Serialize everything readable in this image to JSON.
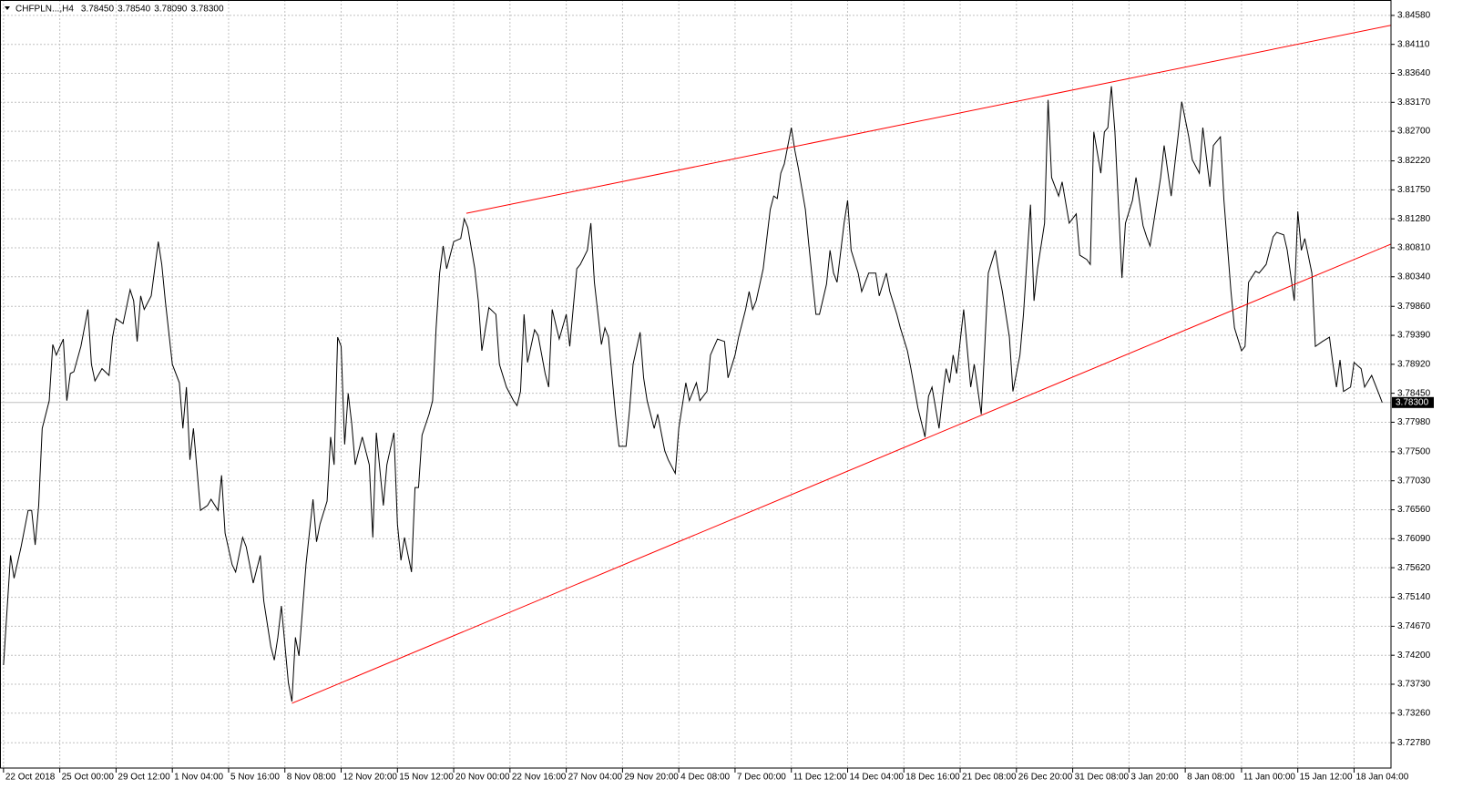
{
  "chart_data": {
    "type": "line",
    "title": "CHFPLN...,H4",
    "ohlc": [
      "3.78450",
      "3.78540",
      "3.78090",
      "3.78300"
    ],
    "x": [
      0,
      2,
      3,
      5,
      7,
      8,
      9,
      10,
      11,
      13,
      14,
      15,
      17,
      18,
      19,
      20,
      22,
      24,
      25,
      26,
      28,
      30,
      31,
      32,
      34,
      36,
      37,
      38,
      39,
      40,
      42,
      44,
      45,
      46,
      48,
      50,
      51,
      52,
      53,
      54,
      56,
      58,
      59,
      61,
      62,
      63,
      65,
      66,
      68,
      69,
      71,
      73,
      74,
      76,
      77,
      78,
      79,
      81,
      82,
      83,
      84,
      86,
      88,
      89,
      90,
      92,
      93,
      94,
      95,
      96,
      97,
      98,
      99,
      100,
      102,
      104,
      105,
      106,
      108,
      109,
      111,
      112,
      113,
      114,
      116,
      117,
      118,
      119,
      121,
      122,
      123,
      124,
      125,
      126,
      128,
      130,
      131,
      132,
      134,
      135,
      136,
      138,
      140,
      141,
      143,
      145,
      146,
      147,
      148,
      149,
      151,
      152,
      154,
      155,
      156,
      158,
      160,
      161,
      163,
      164,
      166,
      167,
      168,
      170,
      171,
      172,
      174,
      175,
      177,
      178,
      179,
      181,
      182,
      183,
      185,
      186,
      188,
      189,
      191,
      192,
      194,
      195,
      197,
      198,
      200,
      201,
      203,
      205,
      206,
      208,
      209,
      211,
      212,
      213,
      214,
      216,
      218,
      219,
      220,
      221,
      222,
      224,
      225,
      226,
      228,
      229,
      231,
      232,
      234,
      235,
      236,
      237,
      239,
      240,
      241,
      243,
      244,
      246,
      248,
      249,
      251,
      252,
      254,
      255,
      257,
      258,
      260,
      262,
      263,
      264,
      266,
      267,
      268,
      269,
      270,
      271,
      273,
      275,
      276,
      278,
      279,
      280,
      282,
      283,
      284,
      286,
      287,
      289,
      290,
      292,
      293,
      294,
      296,
      297,
      298,
      300,
      301,
      303,
      305,
      306,
      308,
      309,
      310,
      312,
      313,
      314,
      315,
      316,
      318,
      319,
      321,
      322,
      324,
      325,
      326,
      328,
      329,
      330,
      332,
      334,
      335,
      337,
      338,
      340,
      341,
      343,
      344,
      346,
      347,
      349,
      350,
      352,
      353,
      354,
      356,
      357,
      359,
      361,
      362,
      364,
      365,
      367,
      368,
      369,
      370,
      372,
      373,
      375,
      377,
      378,
      379,
      380,
      381,
      383,
      384,
      386,
      387,
      389,
      391,
      392
    ],
    "series": [
      {
        "color": "#000000",
        "values": [
          3.7404,
          3.7582,
          3.7545,
          3.7596,
          3.7655,
          3.7655,
          3.7599,
          3.7663,
          3.7788,
          3.7833,
          3.7924,
          3.7907,
          3.7933,
          3.7833,
          3.7877,
          3.788,
          3.7921,
          3.7981,
          3.7892,
          3.7865,
          3.7885,
          3.7874,
          3.7936,
          3.7966,
          3.7958,
          3.8013,
          3.7995,
          3.7929,
          3.8003,
          3.7981,
          3.8003,
          3.8091,
          3.8054,
          3.7995,
          3.7892,
          3.7862,
          3.7788,
          3.7855,
          3.7737,
          3.7788,
          3.7655,
          3.7663,
          3.7673,
          3.7655,
          3.7712,
          3.7618,
          3.7567,
          3.7555,
          3.7611,
          3.7596,
          3.7537,
          3.7582,
          3.7508,
          3.7434,
          3.7412,
          3.7449,
          3.75,
          3.7375,
          3.7345,
          3.7449,
          3.7419,
          3.7567,
          3.7673,
          3.7604,
          3.7633,
          3.767,
          3.7774,
          3.7729,
          3.7936,
          3.7921,
          3.7762,
          3.7845,
          3.7796,
          3.7729,
          3.7774,
          3.7729,
          3.7611,
          3.7781,
          3.7663,
          3.7729,
          3.7781,
          3.7633,
          3.7574,
          3.7611,
          3.7555,
          3.7692,
          3.7692,
          3.7777,
          3.7811,
          3.7833,
          3.7951,
          3.804,
          3.8084,
          3.8047,
          3.8091,
          3.8096,
          3.8128,
          3.8114,
          3.8047,
          3.7995,
          3.7914,
          3.7984,
          3.7973,
          3.7892,
          3.7855,
          3.7833,
          3.7825,
          3.7848,
          3.7973,
          3.7895,
          3.7948,
          3.7939,
          3.7877,
          3.7855,
          3.7981,
          3.7933,
          3.7973,
          3.7921,
          3.8047,
          3.8054,
          3.8077,
          3.8121,
          3.8025,
          3.7924,
          3.7951,
          3.7936,
          3.7811,
          3.7759,
          3.7759,
          3.7818,
          3.7892,
          3.7944,
          3.787,
          3.7833,
          3.7788,
          3.7811,
          3.7752,
          3.7737,
          3.7715,
          3.7788,
          3.7862,
          3.7833,
          3.7862,
          3.7833,
          3.7848,
          3.7907,
          3.7933,
          3.7929,
          3.787,
          3.7907,
          3.7936,
          3.7981,
          3.801,
          3.7981,
          3.7995,
          3.8047,
          3.8143,
          3.8165,
          3.8161,
          3.8202,
          3.8217,
          3.8276,
          3.8239,
          3.821,
          3.8143,
          3.8084,
          3.7973,
          3.7973,
          3.8022,
          3.8077,
          3.804,
          3.8025,
          3.8121,
          3.8158,
          3.8077,
          3.804,
          3.801,
          3.804,
          3.804,
          3.8003,
          3.804,
          3.801,
          3.7973,
          3.7951,
          3.7914,
          3.7885,
          3.7821,
          3.7774,
          3.784,
          3.7855,
          3.7788,
          3.784,
          3.7885,
          3.7862,
          3.7907,
          3.7877,
          3.7981,
          3.7855,
          3.7892,
          3.7811,
          3.7921,
          3.804,
          3.8077,
          3.804,
          3.801,
          3.7936,
          3.7848,
          3.7907,
          3.7973,
          3.8151,
          3.7995,
          3.8047,
          3.8121,
          3.8321,
          3.8195,
          3.8165,
          3.8188,
          3.8121,
          3.8136,
          3.8069,
          3.8062,
          3.8054,
          3.8269,
          3.8202,
          3.8269,
          3.8276,
          3.8343,
          3.8269,
          3.8032,
          3.8121,
          3.8158,
          3.8195,
          3.8117,
          3.8099,
          3.8084,
          3.8158,
          3.8195,
          3.8247,
          3.8165,
          3.8264,
          3.8318,
          3.8261,
          3.8224,
          3.8202,
          3.8276,
          3.818,
          3.8247,
          3.8261,
          3.8158,
          3.801,
          3.7951,
          3.7914,
          3.7921,
          3.8025,
          3.8043,
          3.804,
          3.8054,
          3.8099,
          3.8106,
          3.8102,
          3.8077,
          3.7995,
          3.814,
          3.8077,
          3.8096,
          3.804,
          3.7921,
          3.7929,
          3.7936,
          3.7892,
          3.7855,
          3.7899,
          3.7848,
          3.7855,
          3.7895,
          3.7885,
          3.7855,
          3.7874,
          3.7845,
          3.783
        ]
      }
    ],
    "trendlines": [
      {
        "color": "#ff0000",
        "x": [
          131.6,
          394.5
        ],
        "values": [
          3.8137,
          3.8442
        ]
      },
      {
        "color": "#ff0000",
        "x": [
          82,
          394.5
        ],
        "values": [
          3.7342,
          3.8087
        ]
      }
    ],
    "last": {
      "value": 3.783,
      "label": "3.78300"
    },
    "xlim": [
      -1,
      394.5
    ],
    "ylim": [
      3.7237,
      3.8483
    ],
    "xticks": [
      {
        "value": 0,
        "label": "22 Oct 2018"
      },
      {
        "value": 16,
        "label": "25 Oct 00:00"
      },
      {
        "value": 32,
        "label": "29 Oct 12:00"
      },
      {
        "value": 48,
        "label": "1 Nov 04:00"
      },
      {
        "value": 64,
        "label": "5 Nov 16:00"
      },
      {
        "value": 80,
        "label": "8 Nov 08:00"
      },
      {
        "value": 96,
        "label": "12 Nov 20:00"
      },
      {
        "value": 112,
        "label": "15 Nov 12:00"
      },
      {
        "value": 128,
        "label": "20 Nov 00:00"
      },
      {
        "value": 144,
        "label": "22 Nov 16:00"
      },
      {
        "value": 160,
        "label": "27 Nov 04:00"
      },
      {
        "value": 176,
        "label": "29 Nov 20:00"
      },
      {
        "value": 192,
        "label": "4 Dec 08:00"
      },
      {
        "value": 208,
        "label": "7 Dec 00:00"
      },
      {
        "value": 224,
        "label": "11 Dec 12:00"
      },
      {
        "value": 240,
        "label": "14 Dec 04:00"
      },
      {
        "value": 256,
        "label": "18 Dec 16:00"
      },
      {
        "value": 272,
        "label": "21 Dec 08:00"
      },
      {
        "value": 288,
        "label": "26 Dec 20:00"
      },
      {
        "value": 304,
        "label": "31 Dec 08:00"
      },
      {
        "value": 320,
        "label": "3 Jan 20:00"
      },
      {
        "value": 336,
        "label": "8 Jan 08:00"
      },
      {
        "value": 352,
        "label": "11 Jan 00:00"
      },
      {
        "value": 368,
        "label": "15 Jan 12:00"
      },
      {
        "value": 384,
        "label": "18 Jan 04:00"
      }
    ],
    "yticks": [
      {
        "value": 3.8458,
        "label": "3.84580"
      },
      {
        "value": 3.8411,
        "label": "3.84110"
      },
      {
        "value": 3.8364,
        "label": "3.83640"
      },
      {
        "value": 3.8317,
        "label": "3.83170"
      },
      {
        "value": 3.827,
        "label": "3.82700"
      },
      {
        "value": 3.8222,
        "label": "3.82220"
      },
      {
        "value": 3.8175,
        "label": "3.81750"
      },
      {
        "value": 3.8128,
        "label": "3.81280"
      },
      {
        "value": 3.8081,
        "label": "3.80810"
      },
      {
        "value": 3.8034,
        "label": "3.80340"
      },
      {
        "value": 3.7986,
        "label": "3.79860"
      },
      {
        "value": 3.7939,
        "label": "3.79390"
      },
      {
        "value": 3.7892,
        "label": "3.78920"
      },
      {
        "value": 3.7845,
        "label": "3.78450"
      },
      {
        "value": 3.7798,
        "label": "3.77980"
      },
      {
        "value": 3.775,
        "label": "3.77500"
      },
      {
        "value": 3.7703,
        "label": "3.77030"
      },
      {
        "value": 3.7656,
        "label": "3.76560"
      },
      {
        "value": 3.7609,
        "label": "3.76090"
      },
      {
        "value": 3.7562,
        "label": "3.75620"
      },
      {
        "value": 3.7514,
        "label": "3.75140"
      },
      {
        "value": 3.7467,
        "label": "3.74670"
      },
      {
        "value": 3.742,
        "label": "3.74200"
      },
      {
        "value": 3.7373,
        "label": "3.73730"
      },
      {
        "value": 3.7326,
        "label": "3.73260"
      },
      {
        "value": 3.7278,
        "label": "3.72780"
      }
    ],
    "grid": true
  }
}
